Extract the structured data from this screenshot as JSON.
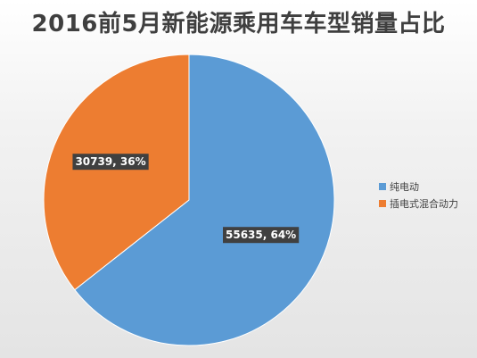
{
  "chart_data": {
    "type": "pie",
    "title": "2016前5月新能源乘用车车型销量占比",
    "categories": [
      "纯电动",
      "插电式混合动力"
    ],
    "values": [
      55635,
      30739
    ],
    "labels": [
      "55635, 64%",
      "30739, 36%"
    ],
    "colors": [
      "#5b9bd5",
      "#ed7d31"
    ],
    "legend": "right"
  }
}
